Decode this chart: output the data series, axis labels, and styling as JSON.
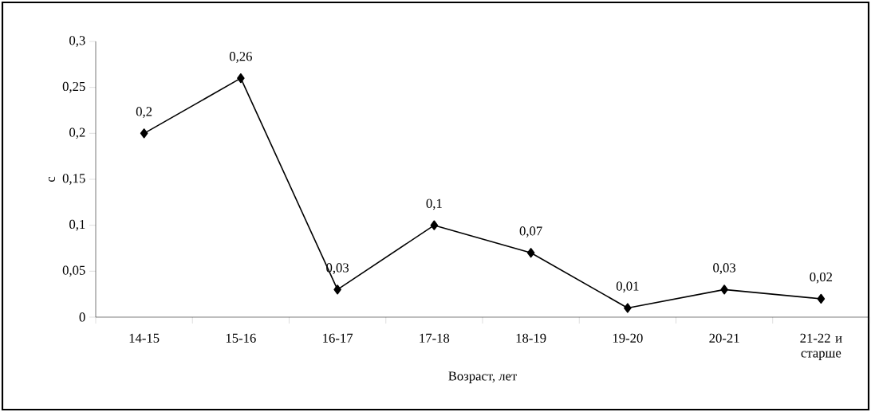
{
  "chart_data": {
    "type": "line",
    "xlabel": "Возраст, лет",
    "ylabel": "c",
    "categories": [
      "14-15",
      "15-16",
      "16-17",
      "17-18",
      "18-19",
      "19-20",
      "20-21",
      "21-22 и старше"
    ],
    "values": [
      0.2,
      0.26,
      0.03,
      0.1,
      0.07,
      0.01,
      0.03,
      0.02
    ],
    "value_labels": [
      "0,2",
      "0,26",
      "0,03",
      "0,1",
      "0,07",
      "0,01",
      "0,03",
      "0,02"
    ],
    "color": "#000000",
    "marker": "diamond",
    "line_style": "solid",
    "grid": false,
    "ylim": [
      0,
      0.3
    ],
    "yticks": [
      {
        "value": 0,
        "label": "0"
      },
      {
        "value": 0.05,
        "label": "0,05"
      },
      {
        "value": 0.1,
        "label": "0,1"
      },
      {
        "value": 0.15,
        "label": "0,15"
      },
      {
        "value": 0.2,
        "label": "0,2"
      },
      {
        "value": 0.25,
        "label": "0,25"
      },
      {
        "value": 0.3,
        "label": "0,3"
      }
    ]
  }
}
